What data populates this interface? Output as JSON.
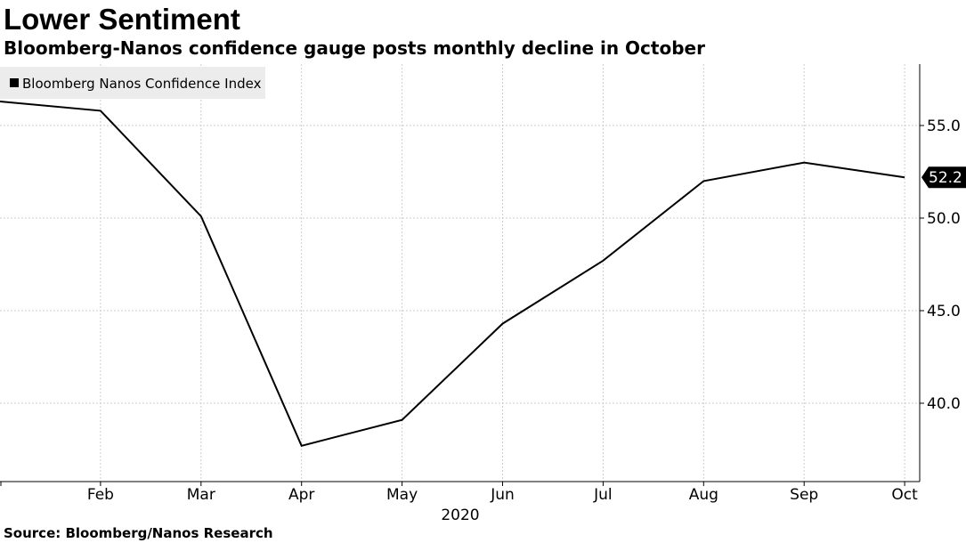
{
  "header": {
    "title": "Lower Sentiment",
    "subtitle": "Bloomberg-Nanos confidence gauge posts monthly decline in October"
  },
  "footer": {
    "source": "Source: Bloomberg/Nanos Research"
  },
  "colors": {
    "line": "#000000",
    "grid": "#cccccc",
    "legend_bg": "#ececec",
    "callout_bg": "#000000"
  },
  "chart_data": {
    "type": "line",
    "title": "Lower Sentiment",
    "subtitle": "Bloomberg-Nanos confidence gauge posts monthly decline in October",
    "xlabel": "2020",
    "ylabel": "",
    "legend": {
      "entries": [
        "Bloomberg Nanos Confidence Index"
      ],
      "placement": "top-left"
    },
    "x_ticks": [
      "Feb",
      "Mar",
      "Apr",
      "May",
      "Jun",
      "Jul",
      "Aug",
      "Sep",
      "Oct"
    ],
    "y_ticks": [
      "40.0",
      "45.0",
      "50.0",
      "55.0"
    ],
    "ylim": [
      36.0,
      58.2
    ],
    "grid": true,
    "series": [
      {
        "name": "Bloomberg Nanos Confidence Index",
        "x": [
          1.0,
          2.0,
          3.0,
          4.0,
          5.0,
          6.0,
          7.0,
          8.0,
          9.0,
          10.0
        ],
        "values": [
          56.3,
          55.8,
          50.1,
          37.7,
          39.1,
          44.3,
          47.7,
          52.0,
          53.0,
          52.2
        ]
      }
    ],
    "last_value_label": "52.2"
  }
}
